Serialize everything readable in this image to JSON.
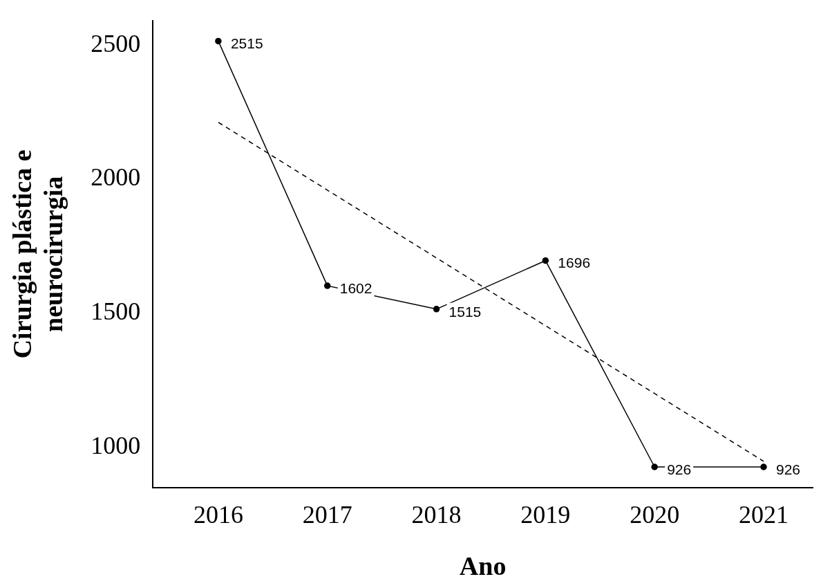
{
  "chart_data": {
    "type": "line",
    "xlabel": "Ano",
    "ylabel": "Cirurgia plástica e\nneurocirurgia",
    "x": [
      2016,
      2017,
      2018,
      2019,
      2020,
      2021
    ],
    "series": [
      {
        "color": "#000000",
        "values": [
          2515,
          1602,
          1515,
          1696,
          926,
          926
        ],
        "value_labels": [
          "2515",
          "1602",
          "1515",
          "1696",
          "926",
          "926"
        ],
        "marker": "circle",
        "line_style": "solid"
      },
      {
        "type": "line",
        "color": "#000000",
        "x": [
          2016,
          2021
        ],
        "values": [
          2212,
          947
        ],
        "marker": "none",
        "line_style": "dashed"
      }
    ],
    "xlim": [
      2015.4,
      2021.45
    ],
    "xticks": [
      2016,
      2017,
      2018,
      2019,
      2020,
      2021
    ],
    "ylim": [
      848,
      2592
    ],
    "yticks": [
      1000,
      1500,
      2000,
      2500
    ],
    "grid": false,
    "legend": false
  }
}
